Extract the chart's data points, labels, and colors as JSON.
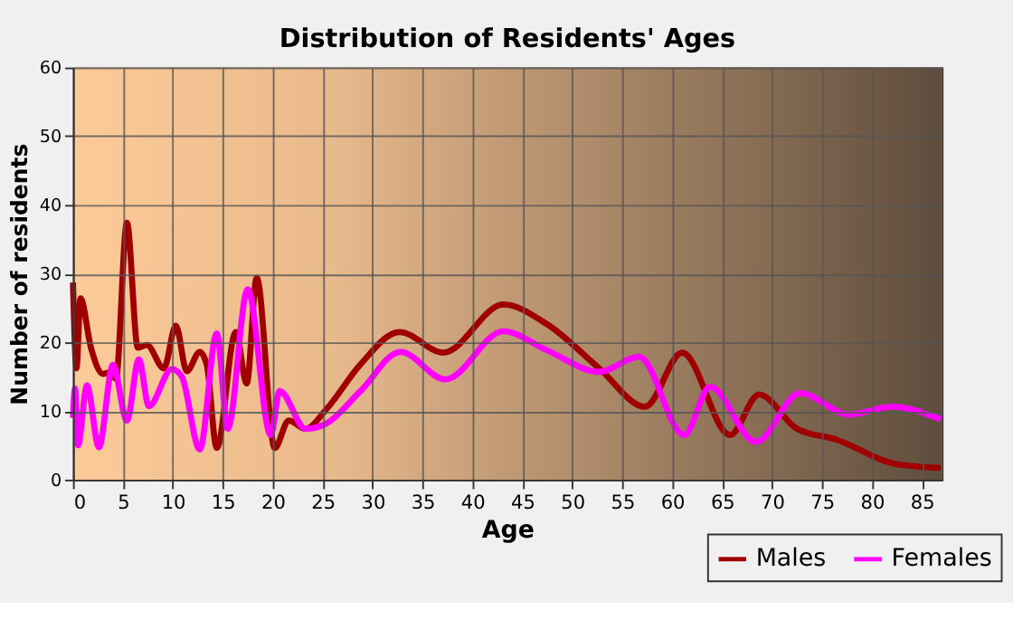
{
  "chart_data": {
    "type": "line",
    "title": "Distribution of Residents' Ages",
    "xlabel": "Age",
    "ylabel": "Number of residents",
    "xlim": [
      0,
      87
    ],
    "xticks": [
      0,
      5,
      10,
      15,
      20,
      25,
      30,
      35,
      40,
      45,
      50,
      55,
      60,
      65,
      70,
      75,
      80,
      85
    ],
    "ylim": [
      0,
      60
    ],
    "yticks": [
      0,
      10,
      20,
      30,
      40,
      50,
      60
    ],
    "grid": true,
    "legend": "bottom right",
    "line_style": "solid",
    "marker": "none",
    "series": [
      {
        "name": "Males",
        "color": "#a00000",
        "x": [
          0,
          0.35,
          0.75,
          1.8,
          3,
          3.7,
          4.3,
          5.4,
          6.5,
          7.4,
          9.1,
          10.3,
          11.4,
          12.7,
          13.4,
          14.4,
          16.3,
          17.4,
          18.4,
          20.2,
          21.6,
          23.3,
          25.4,
          28.8,
          32.7,
          37.1,
          43.1,
          47.5,
          52.7,
          57.3,
          61,
          65.8,
          68.7,
          72.5,
          76.5,
          82.3,
          86.9
        ],
        "values": [
          28.7,
          16.2,
          26.4,
          19.2,
          15.4,
          15.6,
          14.7,
          37.4,
          19.2,
          19.6,
          16.2,
          22.4,
          15.8,
          18.6,
          16.7,
          4.6,
          21.5,
          14,
          29.4,
          4.6,
          8.6,
          7.4,
          10.3,
          16.8,
          21.5,
          18.5,
          25.5,
          22.6,
          16.2,
          10.6,
          18.5,
          6.5,
          12.4,
          7.4,
          5.8,
          2.3,
          1.7
        ]
      },
      {
        "name": "Females",
        "color": "#ff00ff",
        "x": [
          0,
          0.2,
          0.5,
          1.4,
          2.6,
          4,
          5.4,
          6.6,
          7.6,
          9.9,
          10.9,
          12.7,
          14.4,
          15.5,
          17.5,
          19.8,
          20.7,
          23.3,
          25.4,
          28.8,
          32.8,
          37.3,
          43.1,
          47.5,
          52.7,
          56.7,
          61.2,
          63.8,
          68.4,
          72.8,
          77.7,
          82,
          86.9
        ],
        "values": [
          9,
          13.3,
          5,
          13.7,
          4.7,
          16.7,
          8.6,
          17.5,
          10.7,
          16.1,
          15,
          4.4,
          21.3,
          7.4,
          27.7,
          6.5,
          12.9,
          7.4,
          8.2,
          12.9,
          18.6,
          14.6,
          21.6,
          18.8,
          15.7,
          17.9,
          6.5,
          13.5,
          5.5,
          12.6,
          9.5,
          10.6,
          8.8
        ]
      }
    ]
  }
}
